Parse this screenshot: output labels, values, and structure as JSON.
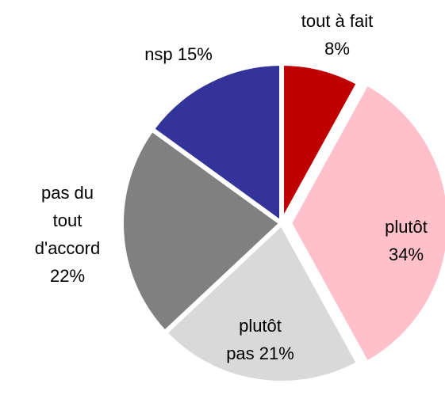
{
  "chart_data": {
    "type": "pie",
    "values": [
      8,
      34,
      21,
      22,
      15
    ],
    "labels": [
      [
        "tout à fait",
        "8%"
      ],
      [
        "plutôt",
        "34%"
      ],
      [
        "plutôt",
        "pas 21%"
      ],
      [
        "pas du",
        "tout",
        "d'accord",
        "22%"
      ],
      [
        "nsp 15%"
      ]
    ],
    "colors": [
      "#c00000",
      "#ffc0cb",
      "#d9d9d9",
      "#808080",
      "#333399"
    ]
  }
}
